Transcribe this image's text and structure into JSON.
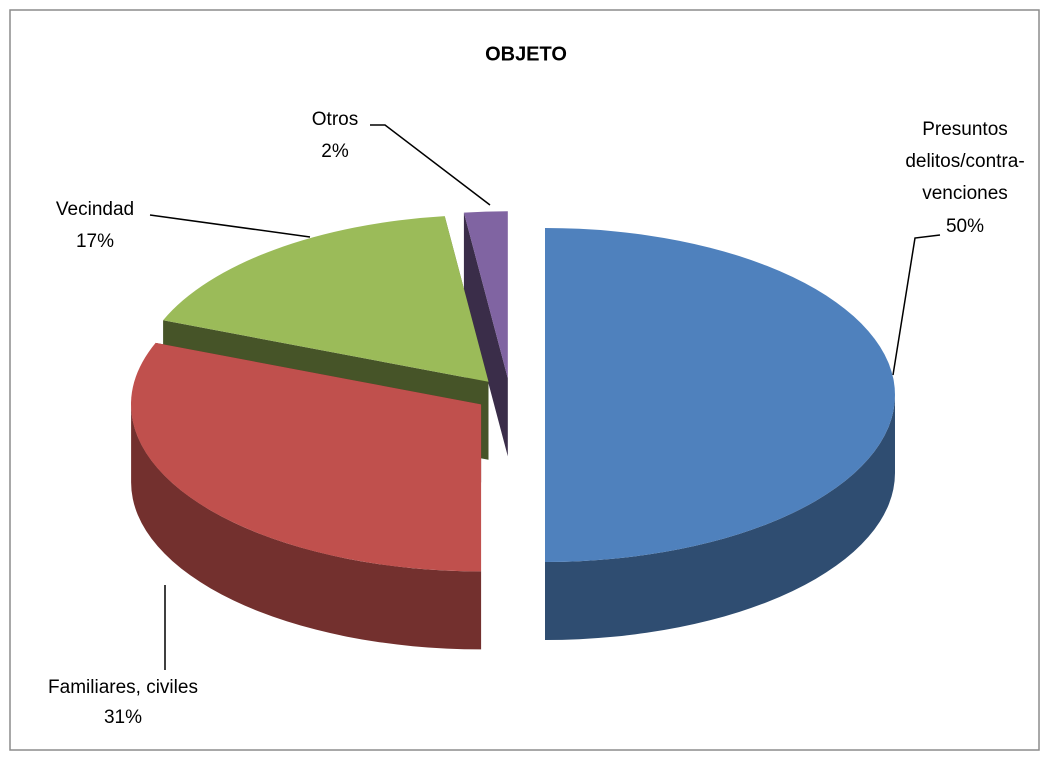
{
  "chart_data": {
    "type": "pie3d",
    "title": "OBJETO",
    "categories": [
      "Presuntos\ndelitos/contra-\nvenciones",
      "Familiares, civiles",
      "Vecindad",
      "Otros"
    ],
    "values": [
      50,
      31,
      17,
      2
    ],
    "value_labels": [
      "50%",
      "31%",
      "17%",
      "2%"
    ],
    "colors": [
      "#4f81bd",
      "#c0504d",
      "#9bbb59",
      "#8064a2"
    ]
  }
}
